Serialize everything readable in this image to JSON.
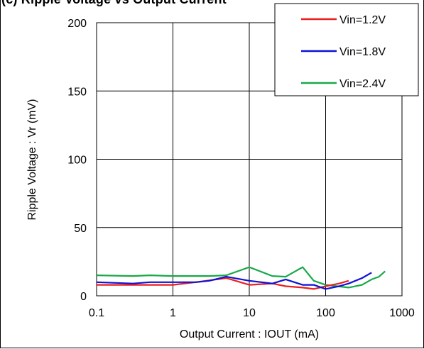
{
  "chart_data": {
    "type": "line",
    "title": "(c) Ripple Voltage vs Output Current",
    "xlabel": "Output Current : IOUT (mA)",
    "ylabel": "Ripple Voltage : Vr (mV)",
    "xscale": "log",
    "xlim": [
      0.1,
      1000
    ],
    "ylim": [
      0,
      200
    ],
    "xticks": [
      0.1,
      1,
      10,
      100,
      1000
    ],
    "xtick_labels": [
      "0.1",
      "1",
      "10",
      "100",
      "1000"
    ],
    "yticks": [
      0,
      50,
      100,
      150,
      200
    ],
    "ytick_labels": [
      "0",
      "50",
      "100",
      "150",
      "200"
    ],
    "grid": true,
    "legend_position": "top-right",
    "series": [
      {
        "name": "Vin=1.2V",
        "color": "#e8201e",
        "x": [
          0.1,
          0.3,
          0.5,
          1,
          2,
          5,
          10,
          20,
          30,
          50,
          70,
          100,
          150,
          200
        ],
        "y": [
          8,
          8,
          8,
          8,
          10,
          13,
          8,
          9,
          7,
          6,
          5,
          7,
          9,
          11
        ]
      },
      {
        "name": "Vin=1.8V",
        "color": "#1010d8",
        "x": [
          0.1,
          0.3,
          0.5,
          1,
          2,
          3,
          5,
          10,
          20,
          30,
          50,
          70,
          100,
          150,
          200,
          300,
          400
        ],
        "y": [
          10,
          9,
          10,
          10,
          10,
          11,
          14,
          11,
          9,
          12,
          8,
          8,
          5,
          7,
          9,
          13,
          17
        ]
      },
      {
        "name": "Vin=2.4V",
        "color": "#18a848",
        "x": [
          0.1,
          0.3,
          0.5,
          1,
          2,
          3,
          5,
          10,
          20,
          30,
          50,
          70,
          100,
          200,
          300,
          400,
          500,
          600
        ],
        "y": [
          15,
          14.5,
          15,
          14.5,
          14.5,
          14.5,
          15,
          21,
          14.5,
          14,
          21,
          11,
          8,
          6,
          8,
          12,
          14,
          18
        ]
      }
    ]
  }
}
